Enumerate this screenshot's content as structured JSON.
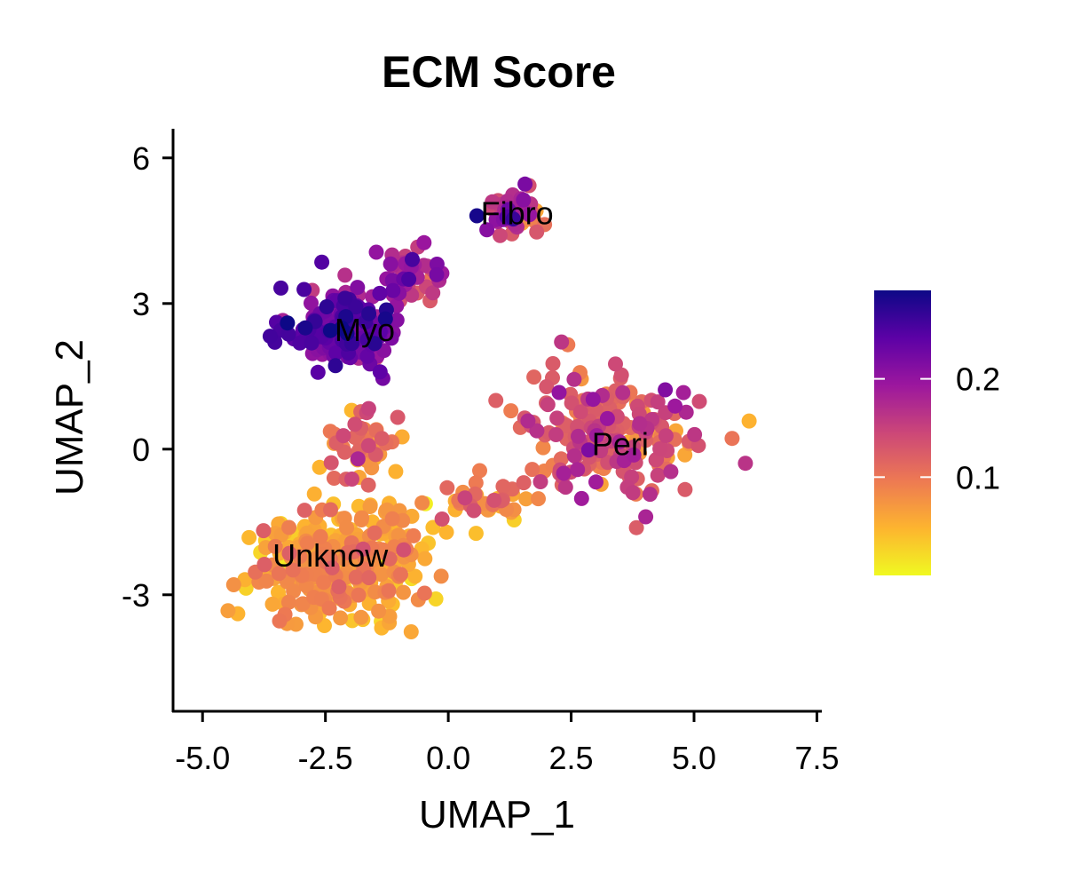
{
  "chart_data": {
    "type": "scatter",
    "title": "ECM Score",
    "xlabel": "UMAP_1",
    "ylabel": "UMAP_2",
    "xlim": [
      -5.6,
      7.6
    ],
    "ylim": [
      -5.4,
      6.6
    ],
    "xticks": [
      -5.0,
      -2.5,
      0.0,
      2.5,
      5.0,
      7.5
    ],
    "xtick_labels": [
      "-5.0",
      "-2.5",
      "0.0",
      "2.5",
      "5.0",
      "7.5"
    ],
    "yticks": [
      -3,
      0,
      3,
      6
    ],
    "ytick_labels": [
      "-3",
      "0",
      "3",
      "6"
    ],
    "grid": false,
    "colorbar": {
      "title": "",
      "colormap": "plasma",
      "range": [
        0.0,
        0.29
      ],
      "ticks": [
        0.1,
        0.2
      ],
      "tick_labels": [
        "0.1",
        "0.2"
      ],
      "colors": [
        "#F0F921",
        "#FDB42F",
        "#ED7953",
        "#CC4778",
        "#9C179E",
        "#5C01A6",
        "#0D0887"
      ]
    },
    "clusters": [
      {
        "label": "Myo",
        "x": -2.1,
        "y": 2.5,
        "spread_x": 0.9,
        "spread_y": 0.7,
        "n": 170,
        "score_mean": 0.22,
        "score_sd": 0.035
      },
      {
        "label": "Fibro",
        "x": 1.3,
        "y": 4.9,
        "spread_x": 0.5,
        "spread_y": 0.45,
        "n": 50,
        "score_mean": 0.17,
        "score_sd": 0.045
      },
      {
        "label": "Peri",
        "x": 3.4,
        "y": 0.3,
        "spread_x": 1.5,
        "spread_y": 1.1,
        "n": 210,
        "score_mean": 0.125,
        "score_sd": 0.035
      },
      {
        "label": "Unknow",
        "x": -2.2,
        "y": -2.3,
        "spread_x": 1.4,
        "spread_y": 1.1,
        "n": 330,
        "score_mean": 0.065,
        "score_sd": 0.025
      },
      {
        "label": "",
        "x": -0.8,
        "y": 3.6,
        "spread_x": 0.5,
        "spread_y": 0.45,
        "n": 50,
        "score_mean": 0.19,
        "score_sd": 0.04
      },
      {
        "label": "",
        "x": -1.8,
        "y": 0.2,
        "spread_x": 0.55,
        "spread_y": 0.7,
        "n": 45,
        "score_mean": 0.1,
        "score_sd": 0.03
      },
      {
        "label": "",
        "x": 0.8,
        "y": -1.1,
        "spread_x": 0.8,
        "spread_y": 0.35,
        "n": 40,
        "score_mean": 0.09,
        "score_sd": 0.03
      }
    ],
    "cluster_labels": [
      {
        "text": "Fibro",
        "x": 1.4,
        "y": 4.85
      },
      {
        "text": "Myo",
        "x": -1.7,
        "y": 2.45
      },
      {
        "text": "Peri",
        "x": 3.5,
        "y": 0.1
      },
      {
        "text": "Unknow",
        "x": -2.4,
        "y": -2.2
      }
    ]
  }
}
